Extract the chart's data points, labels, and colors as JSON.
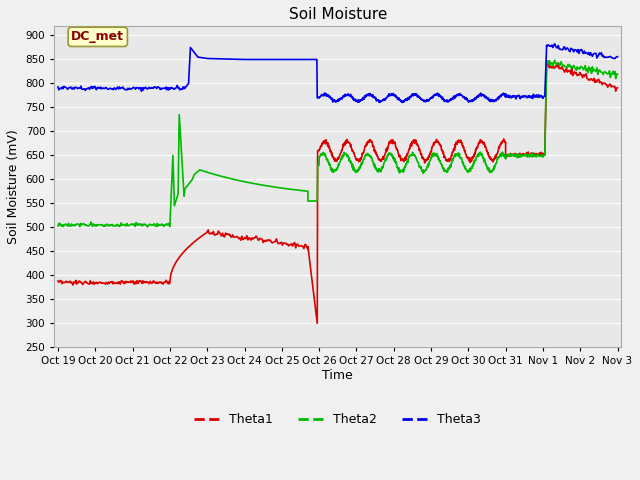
{
  "title": "Soil Moisture",
  "xlabel": "Time",
  "ylabel": "Soil Moisture (mV)",
  "ylim": [
    250,
    920
  ],
  "yticks": [
    250,
    300,
    350,
    400,
    450,
    500,
    550,
    600,
    650,
    700,
    750,
    800,
    850,
    900
  ],
  "fig_bg": "#f0f0f0",
  "plot_bg": "#e8e8e8",
  "grid_color": "#ffffff",
  "annotation_text": "DC_met",
  "annotation_bg": "#ffffcc",
  "annotation_fg": "#8b0000",
  "annotation_border": "#999933",
  "legend_labels": [
    "Theta1",
    "Theta2",
    "Theta3"
  ],
  "legend_colors": [
    "#dd0000",
    "#00bb00",
    "#0000ee"
  ],
  "line_width": 1.2,
  "x_tick_labels": [
    "Oct 19",
    "Oct 20",
    "Oct 21",
    "Oct 22",
    "Oct 23",
    "Oct 24",
    "Oct 25",
    "Oct 26",
    "Oct 27",
    "Oct 28",
    "Oct 29",
    "Oct 30",
    "Oct 31",
    "Nov 1",
    "Nov 2",
    "Nov 3"
  ],
  "x_tick_positions": [
    0,
    1,
    2,
    3,
    4,
    5,
    6,
    7,
    8,
    9,
    10,
    11,
    12,
    13,
    14,
    15
  ],
  "xlim": [
    -0.1,
    15.1
  ]
}
